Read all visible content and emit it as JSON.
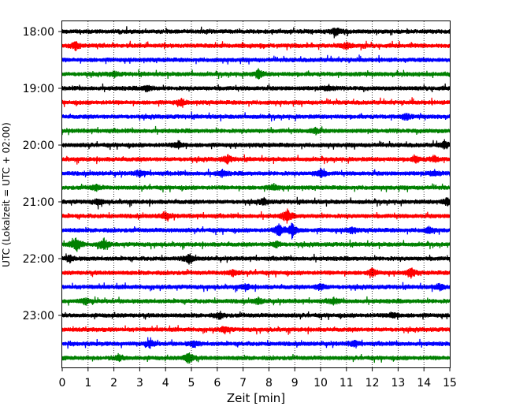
{
  "chart_data": {
    "type": "line",
    "title": "",
    "xlabel": "Zeit  [min]",
    "ylabel": "UTC (Lokalzeit = UTC + 02:00)",
    "xlim": [
      0,
      15
    ],
    "x_ticks": [
      "0",
      "1",
      "2",
      "3",
      "4",
      "5",
      "6",
      "7",
      "8",
      "9",
      "10",
      "11",
      "12",
      "13",
      "14",
      "15"
    ],
    "y_tick_labels": [
      "18:00",
      "19:00",
      "20:00",
      "21:00",
      "22:00",
      "23:00"
    ],
    "grid": "vertical-dotted",
    "trace_colors": [
      "#000000",
      "#ff0000",
      "#0000ff",
      "#008000"
    ],
    "traces": [
      {
        "start": "18:00",
        "events": [
          [
            10.6,
            0.5
          ]
        ]
      },
      {
        "start": "18:15",
        "events": [
          [
            0.5,
            0.5
          ],
          [
            11,
            0.4
          ]
        ]
      },
      {
        "start": "18:30",
        "events": []
      },
      {
        "start": "18:45",
        "events": [
          [
            7.6,
            0.6
          ],
          [
            2,
            0.3
          ]
        ]
      },
      {
        "start": "19:00",
        "events": [
          [
            3.3,
            0.4
          ],
          [
            10.3,
            0.4
          ]
        ]
      },
      {
        "start": "19:15",
        "events": [
          [
            4.6,
            0.4
          ]
        ]
      },
      {
        "start": "19:30",
        "events": [
          [
            13.3,
            0.4
          ]
        ]
      },
      {
        "start": "19:45",
        "events": [
          [
            9.8,
            0.4
          ]
        ]
      },
      {
        "start": "20:00",
        "events": [
          [
            4.5,
            0.5
          ],
          [
            14.8,
            0.5
          ]
        ]
      },
      {
        "start": "20:15",
        "events": [
          [
            6.4,
            0.5
          ],
          [
            13.7,
            0.4
          ],
          [
            14.4,
            0.4
          ]
        ]
      },
      {
        "start": "20:30",
        "events": [
          [
            3,
            0.4
          ],
          [
            6.2,
            0.4
          ],
          [
            10,
            0.6
          ],
          [
            14.4,
            0.4
          ]
        ]
      },
      {
        "start": "20:45",
        "events": [
          [
            1.3,
            0.4
          ],
          [
            8.2,
            0.4
          ]
        ]
      },
      {
        "start": "21:00",
        "events": [
          [
            1.4,
            0.4
          ],
          [
            7.8,
            0.4
          ],
          [
            14.9,
            0.5
          ]
        ]
      },
      {
        "start": "21:15",
        "events": [
          [
            4,
            0.5
          ],
          [
            8.7,
            0.9
          ]
        ]
      },
      {
        "start": "21:30",
        "events": [
          [
            8.4,
            0.8
          ],
          [
            8.9,
            1.0
          ],
          [
            11.2,
            0.4
          ],
          [
            14.2,
            0.4
          ]
        ]
      },
      {
        "start": "21:45",
        "events": [
          [
            0.55,
            1.0
          ],
          [
            1.6,
            0.8
          ],
          [
            8.3,
            0.4
          ]
        ]
      },
      {
        "start": "22:00",
        "events": [
          [
            4.9,
            0.6
          ],
          [
            0.3,
            0.4
          ]
        ]
      },
      {
        "start": "22:15",
        "events": [
          [
            6.6,
            0.4
          ],
          [
            12,
            0.5
          ],
          [
            13.5,
            0.6
          ]
        ]
      },
      {
        "start": "22:30",
        "events": [
          [
            7.1,
            0.4
          ],
          [
            10,
            0.5
          ],
          [
            14.6,
            0.4
          ]
        ]
      },
      {
        "start": "22:45",
        "events": [
          [
            0.9,
            0.4
          ],
          [
            7.6,
            0.4
          ],
          [
            10.5,
            0.4
          ]
        ]
      },
      {
        "start": "23:00",
        "events": [
          [
            6.1,
            0.4
          ],
          [
            12.8,
            0.4
          ]
        ]
      },
      {
        "start": "23:15",
        "events": [
          [
            6.3,
            0.4
          ]
        ]
      },
      {
        "start": "23:30",
        "events": [
          [
            3.4,
            0.5
          ],
          [
            5.1,
            0.4
          ],
          [
            11.3,
            0.4
          ]
        ]
      },
      {
        "start": "23:45",
        "events": [
          [
            4.9,
            0.8
          ],
          [
            2.2,
            0.4
          ]
        ]
      }
    ]
  }
}
